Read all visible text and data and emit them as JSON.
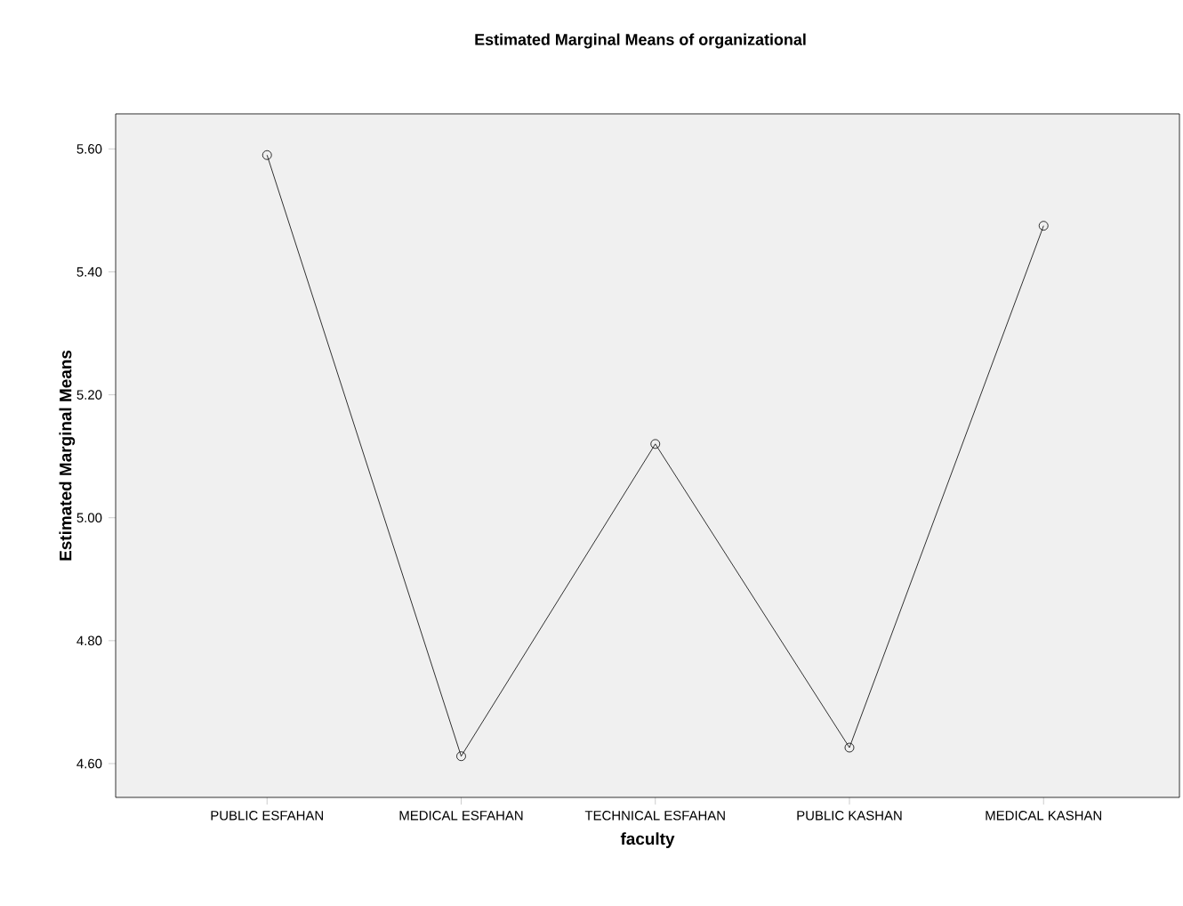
{
  "chart_data": {
    "type": "line",
    "title": "Estimated Marginal Means of organizational",
    "xlabel": "faculty",
    "ylabel": "Estimated Marginal Means",
    "categories": [
      "PUBLIC ESFAHAN",
      "MEDICAL ESFAHAN",
      "TECHNICAL ESFAHAN",
      "PUBLIC KASHAN",
      "MEDICAL KASHAN"
    ],
    "values": [
      5.59,
      4.612,
      5.12,
      4.626,
      5.475
    ],
    "color": "#000000",
    "marker": "circle",
    "line_style": "solid",
    "ylim": [
      4.545,
      5.657
    ],
    "yticks": [
      {
        "value": 4.6,
        "label": "4.60"
      },
      {
        "value": 4.8,
        "label": "4.80"
      },
      {
        "value": 5.0,
        "label": "5.00"
      },
      {
        "value": 5.2,
        "label": "5.20"
      },
      {
        "value": 5.4,
        "label": "5.40"
      },
      {
        "value": 5.6,
        "label": "5.60"
      }
    ],
    "grid": false
  }
}
